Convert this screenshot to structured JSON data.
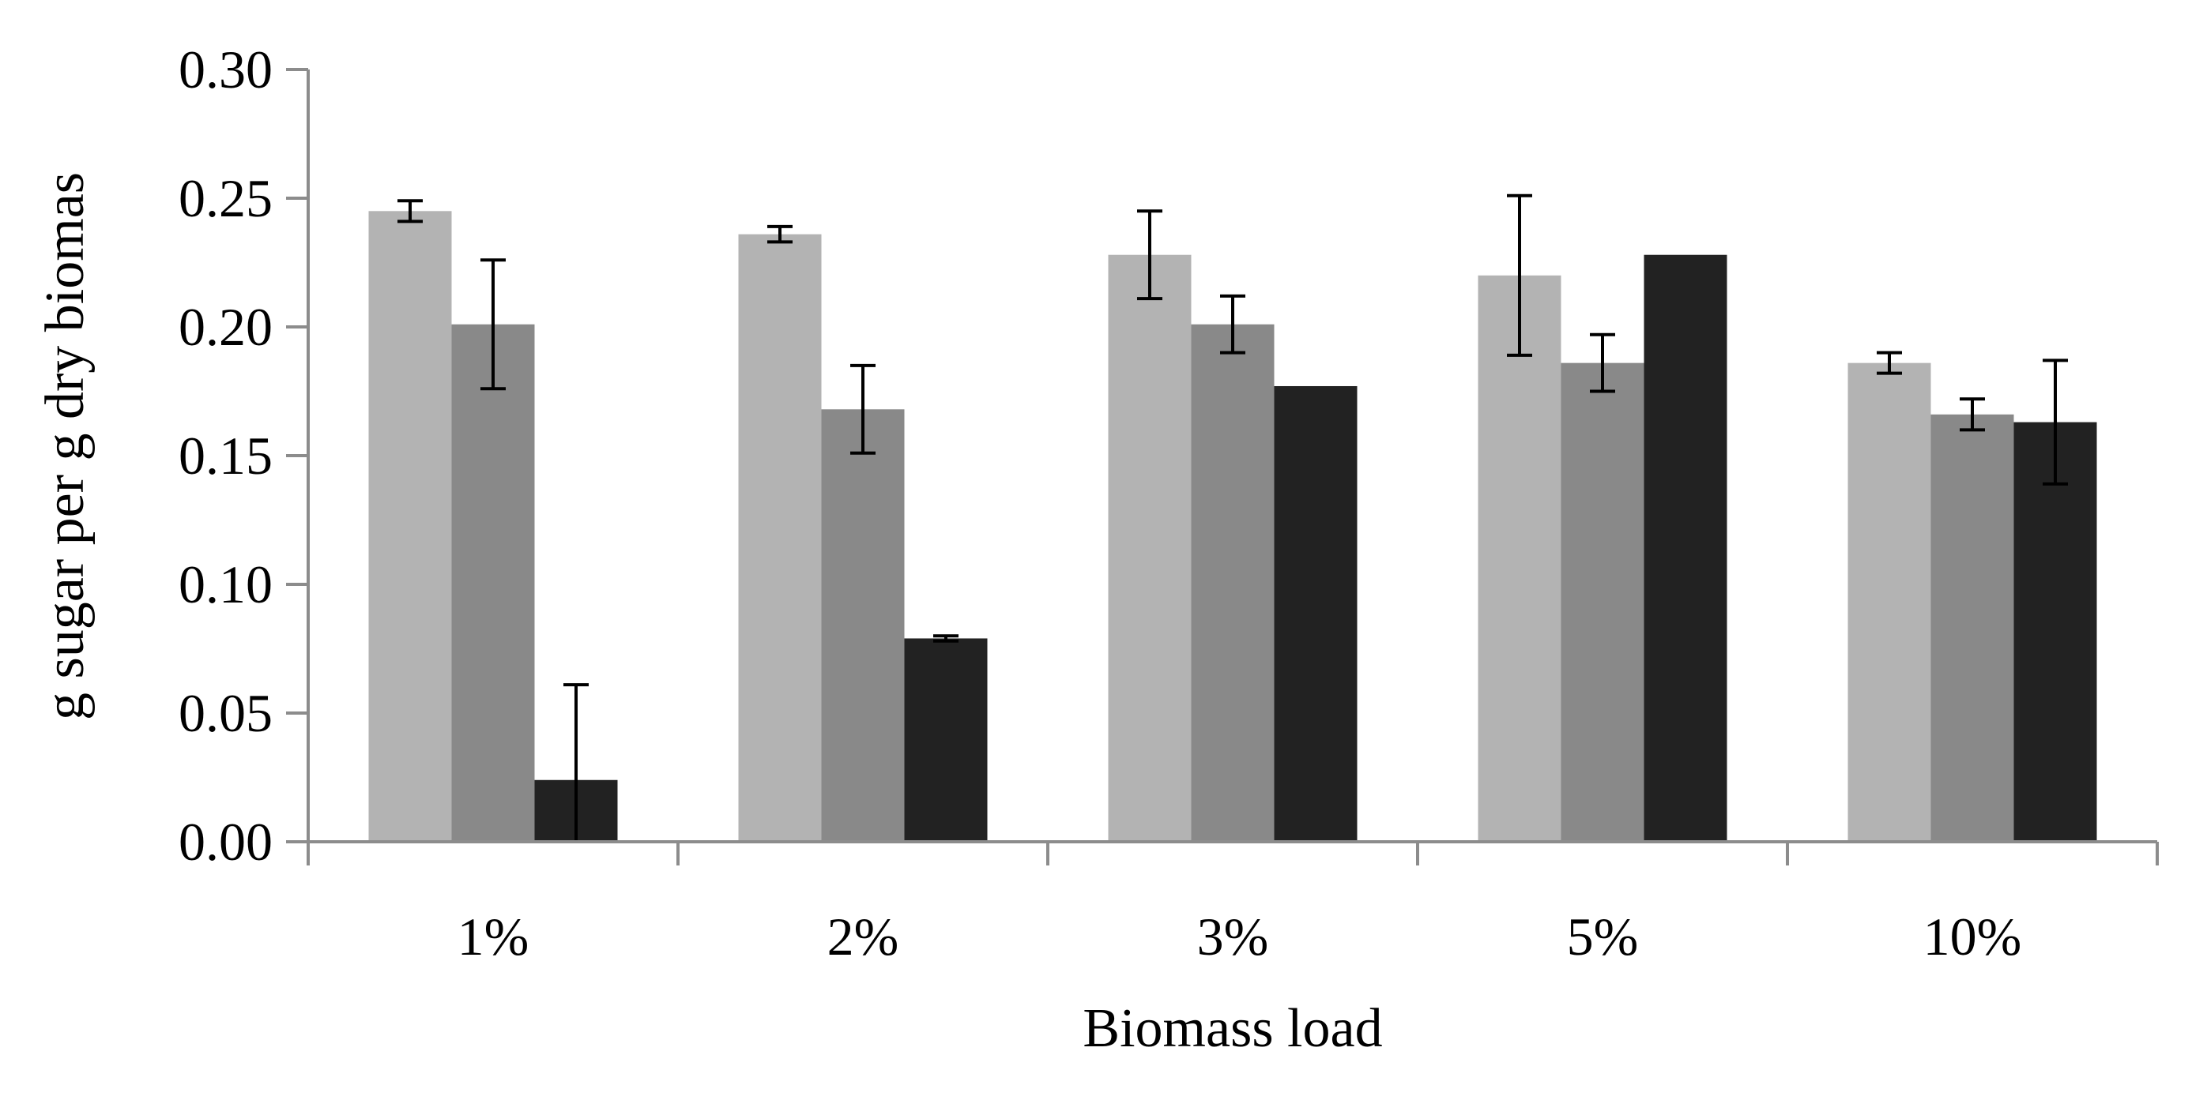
{
  "chart_data": {
    "type": "bar",
    "title": "",
    "xlabel": "Biomass load",
    "ylabel": "g sugar per g dry biomas",
    "ylim": [
      0,
      0.3
    ],
    "yticks": [
      "0.00",
      "0.05",
      "0.10",
      "0.15",
      "0.20",
      "0.25",
      "0.30"
    ],
    "categories": [
      "1%",
      "2%",
      "3%",
      "5%",
      "10%"
    ],
    "grid": false,
    "legend": "none",
    "series": [
      {
        "color": "#b3b3b3",
        "values": [
          0.245,
          0.236,
          0.228,
          0.22,
          0.186
        ],
        "errors": [
          0.004,
          0.003,
          0.017,
          0.031,
          0.004
        ]
      },
      {
        "color": "#898989",
        "values": [
          0.201,
          0.168,
          0.201,
          0.186,
          0.166
        ],
        "errors": [
          0.025,
          0.017,
          0.011,
          0.011,
          0.006
        ]
      },
      {
        "color": "#222222",
        "values": [
          0.024,
          0.079,
          0.177,
          0.228,
          0.163
        ],
        "errors": [
          0.037,
          0.001,
          null,
          null,
          0.024
        ]
      }
    ]
  }
}
